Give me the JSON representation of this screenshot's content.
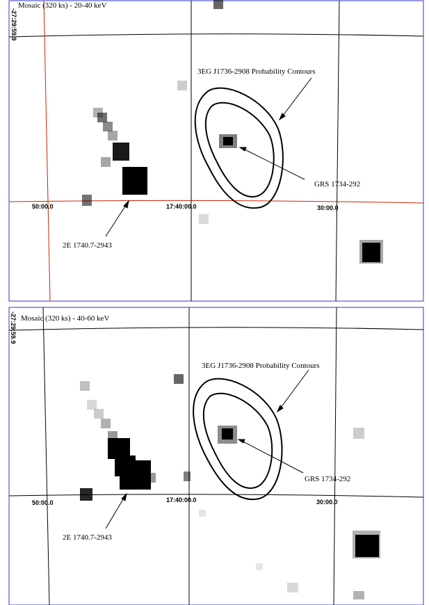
{
  "panels": [
    {
      "title": "Mosaic (320 ks) - 20-40 keV",
      "dec_label": "-27:29:59.9",
      "ra_labels": [
        "50:00.0",
        "17:40:00.0",
        "30:00.0"
      ],
      "annotations": {
        "contours": "3EG J1736-2908 Probability Contours",
        "grs": "GRS 1734-292",
        "source_2e": "2E 1740.7-2943"
      },
      "colors": {
        "frame": "#3333cc",
        "grid_ra": "#000000",
        "grid_red": "#cc2200",
        "pixels": "#000000"
      }
    },
    {
      "title": "Mosaic (320 ks) - 40-60 keV",
      "dec_label": "-27:29:59.9",
      "ra_labels": [
        "50:00.0",
        "17:40:00.0",
        "30:00.0"
      ],
      "annotations": {
        "contours": "3EG J1736-2908 Probability Contours",
        "grs": "GRS 1734-292",
        "source_2e": "2E 1740.7-2943"
      },
      "colors": {
        "frame": "#3333cc",
        "grid_ra": "#000000",
        "pixels": "#000000"
      }
    }
  ]
}
